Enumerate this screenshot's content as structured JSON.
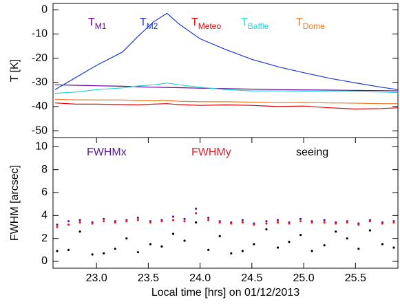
{
  "chart_data": [
    {
      "type": "line",
      "ylabel": "T [K]",
      "x": [
        22.6,
        22.8,
        23.0,
        23.25,
        23.4,
        23.55,
        23.68,
        23.8,
        24.0,
        24.25,
        24.5,
        24.75,
        25.0,
        25.25,
        25.5,
        25.75,
        25.91
      ],
      "xlim": [
        22.58,
        25.91
      ],
      "ylim": [
        -52.8,
        2.6
      ],
      "yticks": [
        0,
        -10,
        -20,
        -30,
        -40,
        -50
      ],
      "series": [
        {
          "name": "T",
          "name_sub": "M1",
          "color": "#660099",
          "values": [
            -31,
            -31.2,
            -31.4,
            -31.6,
            -31.8,
            -32,
            -32.1,
            -32.2,
            -32.4,
            -32.6,
            -32.8,
            -33,
            -33.1,
            -33.2,
            -33.3,
            -33.4,
            -33.5
          ]
        },
        {
          "name": "T",
          "name_sub": "M2",
          "color": "#1c38d4",
          "values": [
            -33,
            -28,
            -23,
            -17.5,
            -11,
            -5,
            -1.5,
            -6,
            -12,
            -16.5,
            -20.5,
            -23.5,
            -26,
            -28.3,
            -30.2,
            -32,
            -33
          ]
        },
        {
          "name": "T",
          "name_sub": "Meteo",
          "color": "#e00000",
          "values": [
            -38.5,
            -39,
            -39,
            -39.2,
            -39.3,
            -39,
            -38.8,
            -39.2,
            -39.5,
            -39.3,
            -39.5,
            -40,
            -39.8,
            -40.5,
            -41,
            -40.8,
            -40.5
          ]
        },
        {
          "name": "T",
          "name_sub": "Baffle",
          "color": "#22d8d8",
          "values": [
            -34.5,
            -34,
            -33,
            -32.3,
            -31.5,
            -31,
            -30.3,
            -31,
            -32,
            -33,
            -33.5,
            -33.5,
            -33.6,
            -33.7,
            -33.8,
            -34,
            -34.2
          ]
        },
        {
          "name": "T",
          "name_sub": "Dome",
          "color": "#f07820",
          "values": [
            -37,
            -37.2,
            -37.3,
            -37.3,
            -37.5,
            -37.6,
            -37.5,
            -37.8,
            -38,
            -38,
            -38.2,
            -38.4,
            -38.3,
            -38.5,
            -38.6,
            -38.8,
            -38.8
          ]
        }
      ]
    },
    {
      "type": "scatter",
      "ylabel": "FWHM [arcsec]",
      "xlabel": "Local time [hrs] on 01/12/2013",
      "x": [
        22.62,
        22.73,
        22.84,
        22.96,
        23.07,
        23.18,
        23.29,
        23.4,
        23.52,
        23.63,
        23.74,
        23.85,
        23.96,
        24.08,
        24.19,
        24.3,
        24.41,
        24.52,
        24.64,
        24.75,
        24.86,
        24.97,
        25.08,
        25.2,
        25.31,
        25.42,
        25.53,
        25.64,
        25.76,
        25.87
      ],
      "xlim": [
        22.58,
        25.91
      ],
      "ylim": [
        -0.6,
        10.8
      ],
      "xticks": [
        {
          "value": 23,
          "label": "23.0"
        },
        {
          "value": 23.5,
          "label": "23.5"
        },
        {
          "value": 24,
          "label": "24.0"
        },
        {
          "value": 24.5,
          "label": "24.5"
        },
        {
          "value": 25,
          "label": "25.0"
        },
        {
          "value": 25.5,
          "label": "25.5"
        }
      ],
      "yticks": [
        0,
        2,
        4,
        6,
        8,
        10
      ],
      "series": [
        {
          "name": "FWHMx",
          "color": "#5a1aa0",
          "values": [
            3.2,
            3.5,
            3.6,
            3.4,
            3.7,
            3.5,
            3.6,
            3.8,
            3.5,
            3.6,
            3.9,
            3.7,
            4.6,
            3.8,
            3.5,
            3.4,
            3.6,
            3.3,
            3.5,
            3.6,
            3.4,
            3.7,
            3.5,
            3.6,
            3.4,
            3.5,
            3.3,
            3.6,
            3.4,
            3.5
          ]
        },
        {
          "name": "FWHMy",
          "color": "#e8202a",
          "values": [
            3.0,
            3.2,
            3.4,
            3.3,
            3.5,
            3.4,
            3.5,
            3.6,
            3.4,
            3.5,
            3.6,
            3.5,
            4.2,
            3.6,
            3.4,
            3.3,
            3.4,
            3.2,
            3.3,
            3.4,
            3.3,
            3.5,
            3.4,
            3.4,
            3.3,
            3.4,
            3.2,
            3.5,
            3.3,
            3.4
          ]
        },
        {
          "name": "seeing",
          "color": "#000000",
          "values": [
            0.9,
            1.0,
            2.6,
            0.6,
            0.7,
            1.1,
            2.0,
            0.8,
            1.5,
            1.3,
            2.4,
            1.8,
            3.4,
            1.0,
            2.2,
            0.7,
            0.9,
            1.5,
            2.8,
            1.2,
            1.7,
            2.3,
            0.9,
            1.4,
            2.6,
            2.0,
            1.1,
            2.7,
            1.5,
            1.2
          ]
        }
      ]
    }
  ]
}
